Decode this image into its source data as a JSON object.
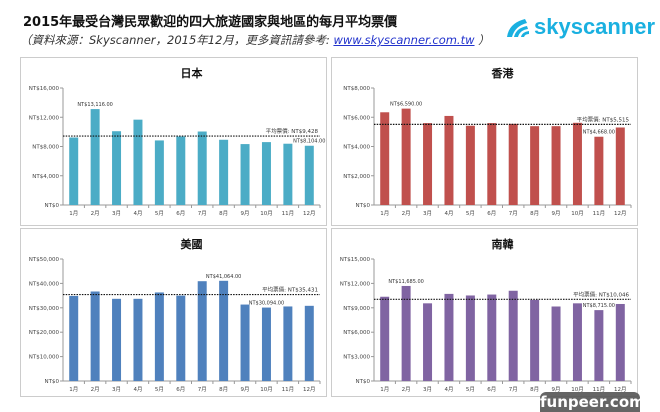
{
  "header": {
    "title": "2015年最受台灣民眾歡迎的四大旅遊國家與地區的每月平均票價",
    "subtitle_prefix": "（資料來源：Skyscanner，2015年12月，更多資訊請參考: ",
    "subtitle_link": "www.skyscanner.com.tw",
    "subtitle_suffix": " ）",
    "logo_text": "skyscanner",
    "logo_color": "#1ab0e0"
  },
  "watermark": "funpeer.com",
  "chart_data": [
    {
      "type": "bar",
      "title": "日本",
      "color": "#4bacc6",
      "categories": [
        "1月",
        "2月",
        "3月",
        "4月",
        "5月",
        "6月",
        "7月",
        "8月",
        "9月",
        "10月",
        "11月",
        "12月"
      ],
      "values": [
        9230,
        13116,
        10090,
        11670,
        8830,
        9370,
        10050,
        8920,
        8330,
        8600,
        8380,
        8104
      ],
      "ylim": [
        0,
        16000
      ],
      "yticks": [
        "NT$0",
        "NT$4,000",
        "NT$8,000",
        "NT$12,000",
        "NT$16,000"
      ],
      "average": 9428,
      "average_label": "平均票價: NT$9,428",
      "annotations": [
        {
          "index": 1,
          "text": "NT$13,116.00",
          "pos": "above"
        },
        {
          "index": 11,
          "text": "NT$8,104.00",
          "pos": "above"
        }
      ]
    },
    {
      "type": "bar",
      "title": "香港",
      "color": "#c0504d",
      "categories": [
        "1月",
        "2月",
        "3月",
        "4月",
        "5月",
        "6月",
        "7月",
        "8月",
        "9月",
        "10月",
        "11月",
        "12月"
      ],
      "values": [
        6340,
        6590,
        5600,
        6090,
        5420,
        5600,
        5550,
        5390,
        5390,
        5620,
        4668,
        5300
      ],
      "ylim": [
        0,
        8000
      ],
      "yticks": [
        "NT$0",
        "NT$2,000",
        "NT$4,000",
        "NT$6,000",
        "NT$8,000"
      ],
      "average": 5515,
      "average_label": "平均票價: NT$5,515",
      "annotations": [
        {
          "index": 1,
          "text": "NT$6,590.00",
          "pos": "above"
        },
        {
          "index": 10,
          "text": "NT$4,668.00",
          "pos": "above"
        }
      ]
    },
    {
      "type": "bar",
      "title": "美國",
      "color": "#4f81bd",
      "categories": [
        "1月",
        "2月",
        "3月",
        "4月",
        "5月",
        "6月",
        "7月",
        "8月",
        "9月",
        "10月",
        "11月",
        "12月"
      ],
      "values": [
        34860,
        36680,
        33680,
        33680,
        36290,
        34990,
        40900,
        41064,
        31330,
        30094,
        30550,
        30810
      ],
      "ylim": [
        0,
        50000
      ],
      "yticks": [
        "NT$0",
        "NT$10,000",
        "NT$20,000",
        "NT$30,000",
        "NT$40,000",
        "NT$50,000"
      ],
      "average": 35431,
      "average_label": "平均票價: NT$35,431",
      "annotations": [
        {
          "index": 7,
          "text": "NT$41,064.00",
          "pos": "above"
        },
        {
          "index": 9,
          "text": "NT$30,094.00",
          "pos": "above"
        }
      ]
    },
    {
      "type": "bar",
      "title": "南韓",
      "color": "#8064a2",
      "categories": [
        "1月",
        "2月",
        "3月",
        "4月",
        "5月",
        "6月",
        "7月",
        "8月",
        "9月",
        "10月",
        "11月",
        "12月"
      ],
      "values": [
        10360,
        11685,
        9550,
        10710,
        10515,
        10630,
        11095,
        9975,
        9160,
        9550,
        8715,
        9470
      ],
      "ylim": [
        0,
        15000
      ],
      "yticks": [
        "NT$0",
        "NT$3,000",
        "NT$6,000",
        "NT$9,000",
        "NT$12,000",
        "NT$15,000"
      ],
      "average": 10046,
      "average_label": "平均票價: NT$10,046",
      "annotations": [
        {
          "index": 1,
          "text": "NT$11,685.00",
          "pos": "above"
        },
        {
          "index": 10,
          "text": "NT$8,715.00",
          "pos": "above"
        }
      ]
    }
  ]
}
